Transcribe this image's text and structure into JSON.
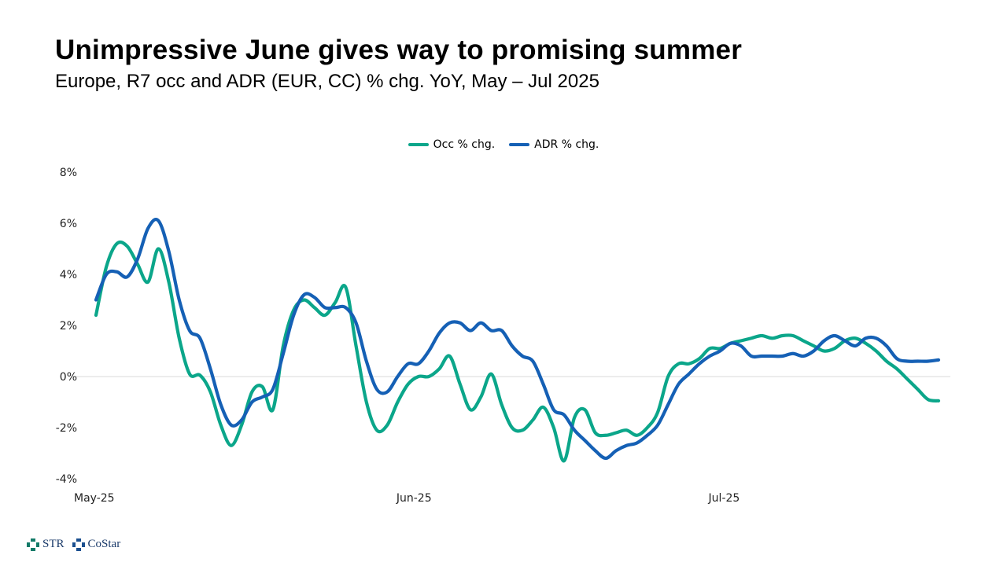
{
  "chart_data": {
    "type": "line",
    "title": "Unimpressive June gives way to promising summer",
    "subtitle": "Europe, R7 occ and ADR (EUR, CC) % chg. YoY, May – Jul 2025",
    "xlabel": "",
    "ylabel": "",
    "ylim": [
      -4,
      8
    ],
    "yticks": [
      -4,
      -2,
      0,
      2,
      4,
      6,
      8
    ],
    "ytick_labels": [
      "-4%",
      "-2%",
      "0%",
      "2%",
      "4%",
      "6%",
      "8%"
    ],
    "xtick_labels": [
      {
        "label": "May-25",
        "index": 0
      },
      {
        "label": "Jun-25",
        "index": 31
      },
      {
        "label": "Jul-25",
        "index": 61
      }
    ],
    "grid": "zero-line only",
    "legend_position": "top-center",
    "series": [
      {
        "name": "Occ % chg.",
        "color": "#0BA68A",
        "values": [
          2.4,
          4.3,
          5.2,
          5.1,
          4.4,
          3.7,
          5.0,
          3.7,
          1.5,
          0.1,
          0.05,
          -0.6,
          -1.9,
          -2.7,
          -1.9,
          -0.6,
          -0.4,
          -1.3,
          1.2,
          2.6,
          3.0,
          2.7,
          2.4,
          2.9,
          3.5,
          1.2,
          -1.0,
          -2.1,
          -1.9,
          -1.0,
          -0.3,
          0.0,
          0.0,
          0.3,
          0.8,
          -0.3,
          -1.3,
          -0.8,
          0.1,
          -1.1,
          -2.0,
          -2.1,
          -1.7,
          -1.2,
          -2.0,
          -3.3,
          -1.6,
          -1.3,
          -2.2,
          -2.3,
          -2.2,
          -2.1,
          -2.3,
          -2.0,
          -1.4,
          0.0,
          0.5,
          0.5,
          0.7,
          1.1,
          1.1,
          1.3,
          1.4,
          1.5,
          1.6,
          1.5,
          1.6,
          1.6,
          1.4,
          1.2,
          1.0,
          1.1,
          1.4,
          1.5,
          1.3,
          1.0,
          0.6,
          0.3,
          -0.1,
          -0.5,
          -0.9,
          -0.95
        ]
      },
      {
        "name": "ADR % chg.",
        "color": "#1560B5",
        "values": [
          3.0,
          4.0,
          4.1,
          3.9,
          4.6,
          5.8,
          6.1,
          4.9,
          3.0,
          1.8,
          1.5,
          0.3,
          -1.1,
          -1.9,
          -1.7,
          -1.0,
          -0.8,
          -0.5,
          0.9,
          2.4,
          3.2,
          3.1,
          2.7,
          2.7,
          2.7,
          2.1,
          0.6,
          -0.5,
          -0.6,
          0.0,
          0.5,
          0.5,
          1.0,
          1.7,
          2.1,
          2.1,
          1.8,
          2.1,
          1.8,
          1.8,
          1.2,
          0.8,
          0.6,
          -0.3,
          -1.3,
          -1.5,
          -2.1,
          -2.5,
          -2.9,
          -3.2,
          -2.9,
          -2.7,
          -2.6,
          -2.3,
          -1.9,
          -1.1,
          -0.3,
          0.1,
          0.5,
          0.8,
          1.0,
          1.3,
          1.2,
          0.8,
          0.8,
          0.8,
          0.8,
          0.9,
          0.8,
          1.0,
          1.4,
          1.6,
          1.4,
          1.2,
          1.5,
          1.5,
          1.2,
          0.7,
          0.6,
          0.6,
          0.6,
          0.65
        ]
      }
    ]
  },
  "footer": {
    "logos": [
      "STR",
      "CoStar"
    ]
  }
}
